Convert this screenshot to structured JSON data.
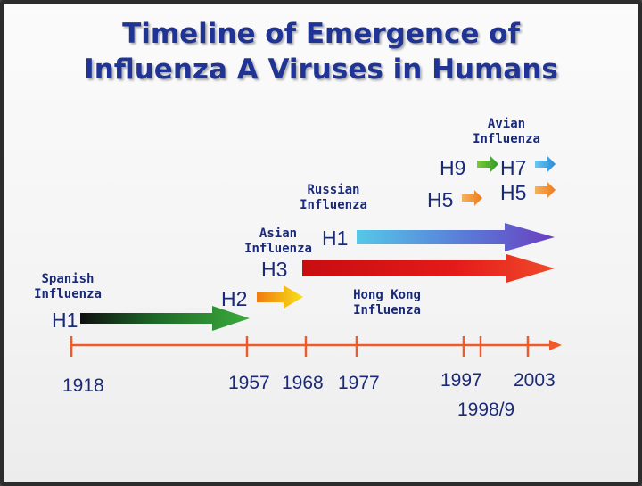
{
  "title": {
    "line1": "Timeline of Emergence of",
    "line2": "Influenza A Viruses in Humans"
  },
  "pandemics": {
    "spanish": {
      "label_line1": "Spanish",
      "label_line2": "Influenza",
      "subtype": "H1"
    },
    "asian": {
      "label_line1": "Asian",
      "label_line2": "Influenza",
      "subtype": "H2"
    },
    "hong_kong": {
      "label_line1": "Hong Kong",
      "label_line2": "Influenza",
      "subtype": "H3"
    },
    "russian": {
      "label_line1": "Russian",
      "label_line2": "Influenza",
      "subtype": "H1"
    }
  },
  "avian": {
    "label_line1": "Avian",
    "label_line2": "Influenza",
    "h5_1997": "H5",
    "h9_1999": "H9",
    "h7_2003": "H7",
    "h5_2003": "H5"
  },
  "timeline": {
    "years": [
      "1918",
      "1957",
      "1968",
      "1977",
      "1997",
      "2003"
    ],
    "extra_year": "1998/9"
  },
  "colors": {
    "title": "#1f3494",
    "text": "#1a2a78",
    "axis": "#f05a2a",
    "h1_spanish": "#2c8a2c",
    "h2": "#f5b800",
    "h3": "#e41a1a",
    "h1_russian": "#6a4fc8",
    "h9": "#4caf2a",
    "h7": "#3aa8e0",
    "h5": "#f28a2a"
  }
}
